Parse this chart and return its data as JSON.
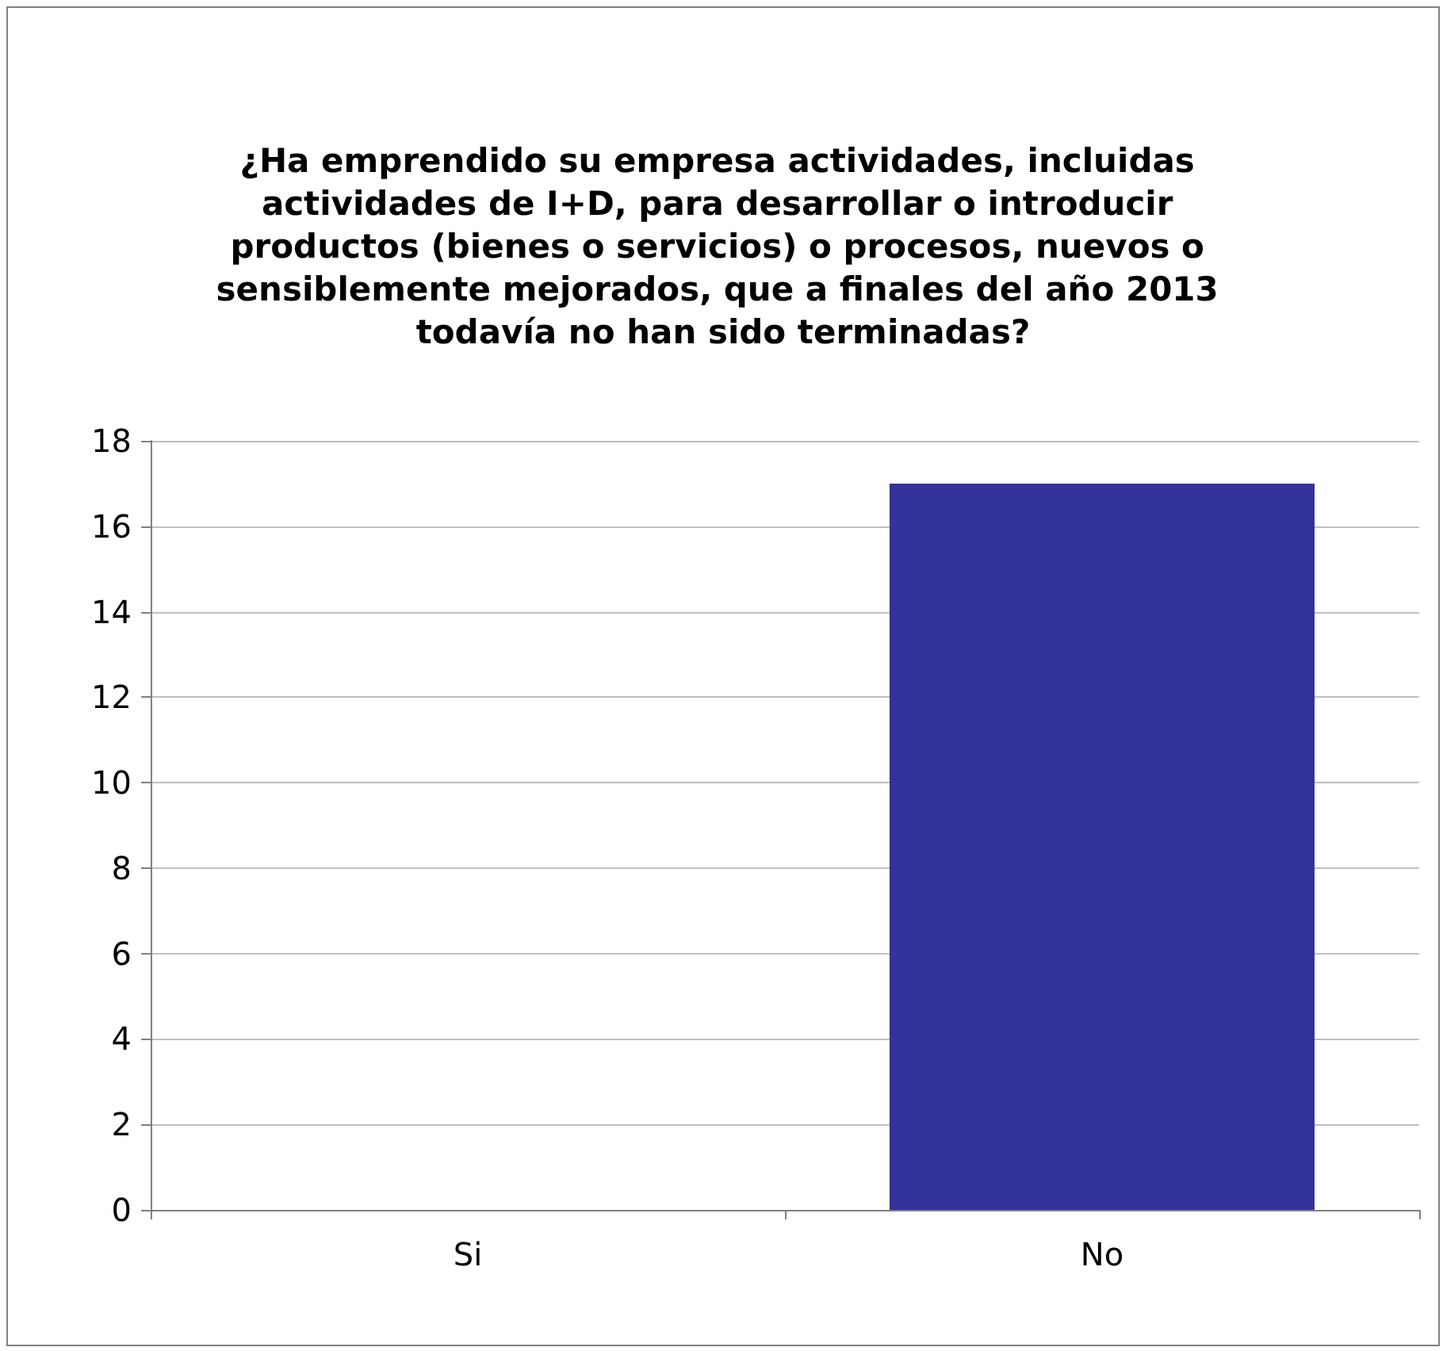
{
  "chart_data": {
    "type": "bar",
    "title": "¿Ha emprendido su empresa actividades, incluidas actividades de I+D, para desarrollar o introducir productos (bienes o servicios) o procesos, nuevos o sensiblemente mejorados, que a finales del año 2013 todavía no han sido terminadas?",
    "categories": [
      "Si",
      "No"
    ],
    "values": [
      0,
      17
    ],
    "color": "#333399",
    "ylim": [
      0,
      18
    ],
    "yticks": [
      0,
      2,
      4,
      6,
      8,
      10,
      12,
      14,
      16,
      18
    ],
    "grid": "y"
  }
}
